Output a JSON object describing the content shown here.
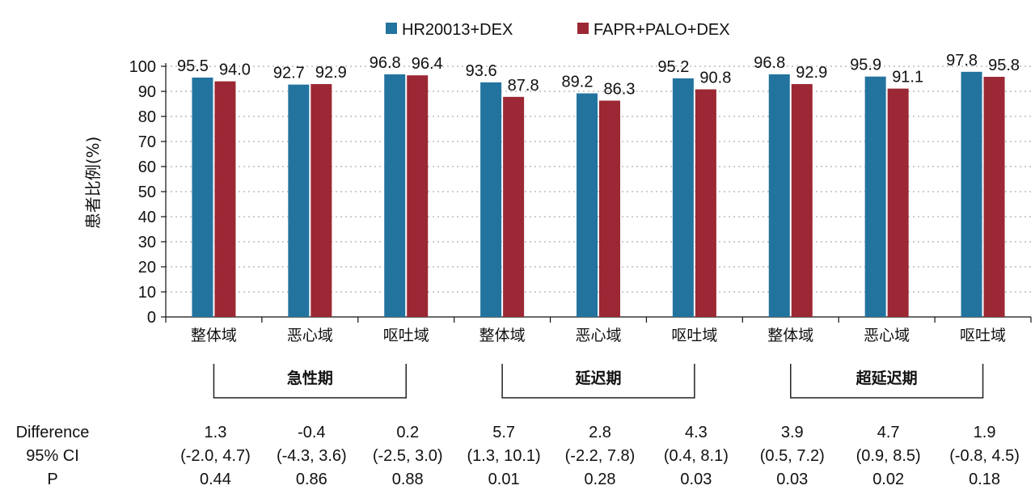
{
  "chart_data": {
    "type": "bar",
    "title": "",
    "xlabel": "",
    "ylabel": "患者比例(%)",
    "ylim": [
      0,
      100
    ],
    "yticks": [
      0,
      10,
      20,
      30,
      40,
      50,
      60,
      70,
      80,
      90,
      100
    ],
    "grid": "horizontal dotted",
    "legend_position": "top",
    "categories": [
      "整体域",
      "恶心域",
      "呕吐域",
      "整体域",
      "恶心域",
      "呕吐域",
      "整体域",
      "恶心域",
      "呕吐域"
    ],
    "series": [
      {
        "name": "HR20013+DEX",
        "color": "#23739f",
        "values": [
          95.5,
          92.7,
          96.8,
          93.6,
          89.2,
          95.2,
          96.8,
          95.9,
          97.8
        ],
        "labels": [
          "95.5",
          "92.7",
          "96.8",
          "93.6",
          "89.2",
          "95.2",
          "96.8",
          "95.9",
          "97.8"
        ]
      },
      {
        "name": "FAPR+PALO+DEX",
        "color": "#9b2834",
        "values": [
          94.0,
          92.9,
          96.4,
          87.8,
          86.3,
          90.8,
          92.9,
          91.1,
          95.8
        ],
        "labels": [
          "94.0",
          "92.9",
          "96.4",
          "87.8",
          "86.3",
          "90.8",
          "92.9",
          "91.1",
          "95.8"
        ]
      }
    ],
    "groups": [
      {
        "label": "急性期",
        "categories": [
          0,
          2
        ]
      },
      {
        "label": "延迟期",
        "categories": [
          3,
          5
        ]
      },
      {
        "label": "超延迟期",
        "categories": [
          6,
          8
        ]
      }
    ],
    "stats_table": {
      "row_labels": [
        "Difference",
        "95% CI",
        "P"
      ],
      "difference": [
        "1.3",
        "-0.4",
        "0.2",
        "5.7",
        "2.8",
        "4.3",
        "3.9",
        "4.7",
        "1.9"
      ],
      "ci": [
        "(-2.0, 4.7)",
        "(-4.3, 3.6)",
        "(-2.5, 3.0)",
        "(1.3, 10.1)",
        "(-2.2, 7.8)",
        "(0.4, 8.1)",
        "(0.5, 7.2)",
        "(0.9, 8.5)",
        "(-0.8, 4.5)"
      ],
      "p": [
        "0.44",
        "0.86",
        "0.88",
        "0.01",
        "0.28",
        "0.03",
        "0.03",
        "0.02",
        "0.18"
      ]
    }
  }
}
